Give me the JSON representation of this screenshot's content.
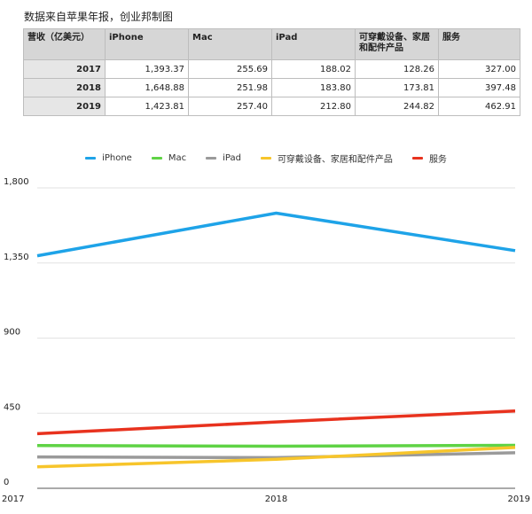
{
  "source_note": "数据来自苹果年报，创业邦制图",
  "table": {
    "corner": "营收（亿美元）",
    "columns": [
      "iPhone",
      "Mac",
      "iPad",
      "可穿戴设备、家居和配件产品",
      "服务"
    ],
    "rows": [
      {
        "year": "2017",
        "cells": [
          "1,393.37",
          "255.69",
          "188.02",
          "128.26",
          "327.00"
        ]
      },
      {
        "year": "2018",
        "cells": [
          "1,648.88",
          "251.98",
          "183.80",
          "173.81",
          "397.48"
        ]
      },
      {
        "year": "2019",
        "cells": [
          "1,423.81",
          "257.40",
          "212.80",
          "244.82",
          "462.91"
        ]
      }
    ]
  },
  "chart_data": {
    "type": "line",
    "x": [
      "2017",
      "2018",
      "2019"
    ],
    "ylim": [
      0,
      1800
    ],
    "yticks": [
      0,
      450,
      900,
      1350,
      1800
    ],
    "ytick_labels": [
      "0",
      "450",
      "900",
      "1,350",
      "1,800"
    ],
    "grid": true,
    "legend_placement": "top-center",
    "series": [
      {
        "name": "iPhone",
        "color": "#1ea3e8",
        "values": [
          1393.37,
          1648.88,
          1423.81
        ]
      },
      {
        "name": "Mac",
        "color": "#5fd345",
        "values": [
          255.69,
          251.98,
          257.4
        ]
      },
      {
        "name": "iPad",
        "color": "#9a9a9a",
        "values": [
          188.02,
          183.8,
          212.8
        ]
      },
      {
        "name": "可穿戴设备、家居和配件产品",
        "color": "#f7c52b",
        "values": [
          128.26,
          173.81,
          244.82
        ]
      },
      {
        "name": "服务",
        "color": "#e8321e",
        "values": [
          327.0,
          397.48,
          462.91
        ]
      }
    ]
  }
}
